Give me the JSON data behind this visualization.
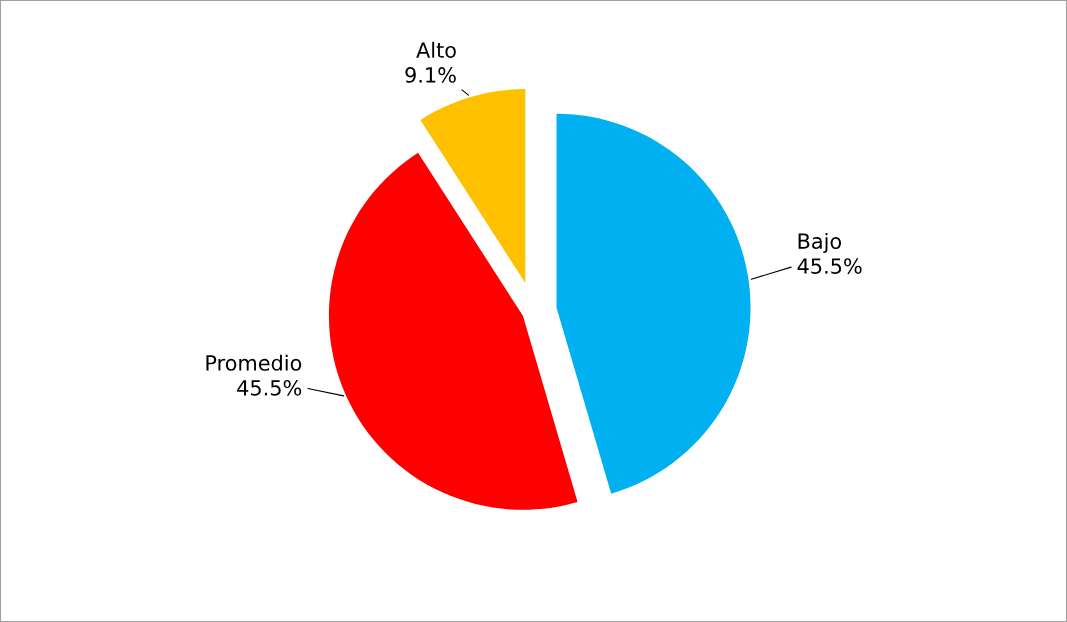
{
  "chart_data": {
    "type": "pie",
    "categories": [
      "Bajo",
      "Promedio",
      "Alto"
    ],
    "values": [
      45.5,
      45.5,
      9.1
    ],
    "colors": [
      "#00b0f0",
      "#ff0000",
      "#ffc000"
    ],
    "value_labels": [
      "45.5%",
      "45.5%",
      "9.1%"
    ],
    "legend": false
  }
}
